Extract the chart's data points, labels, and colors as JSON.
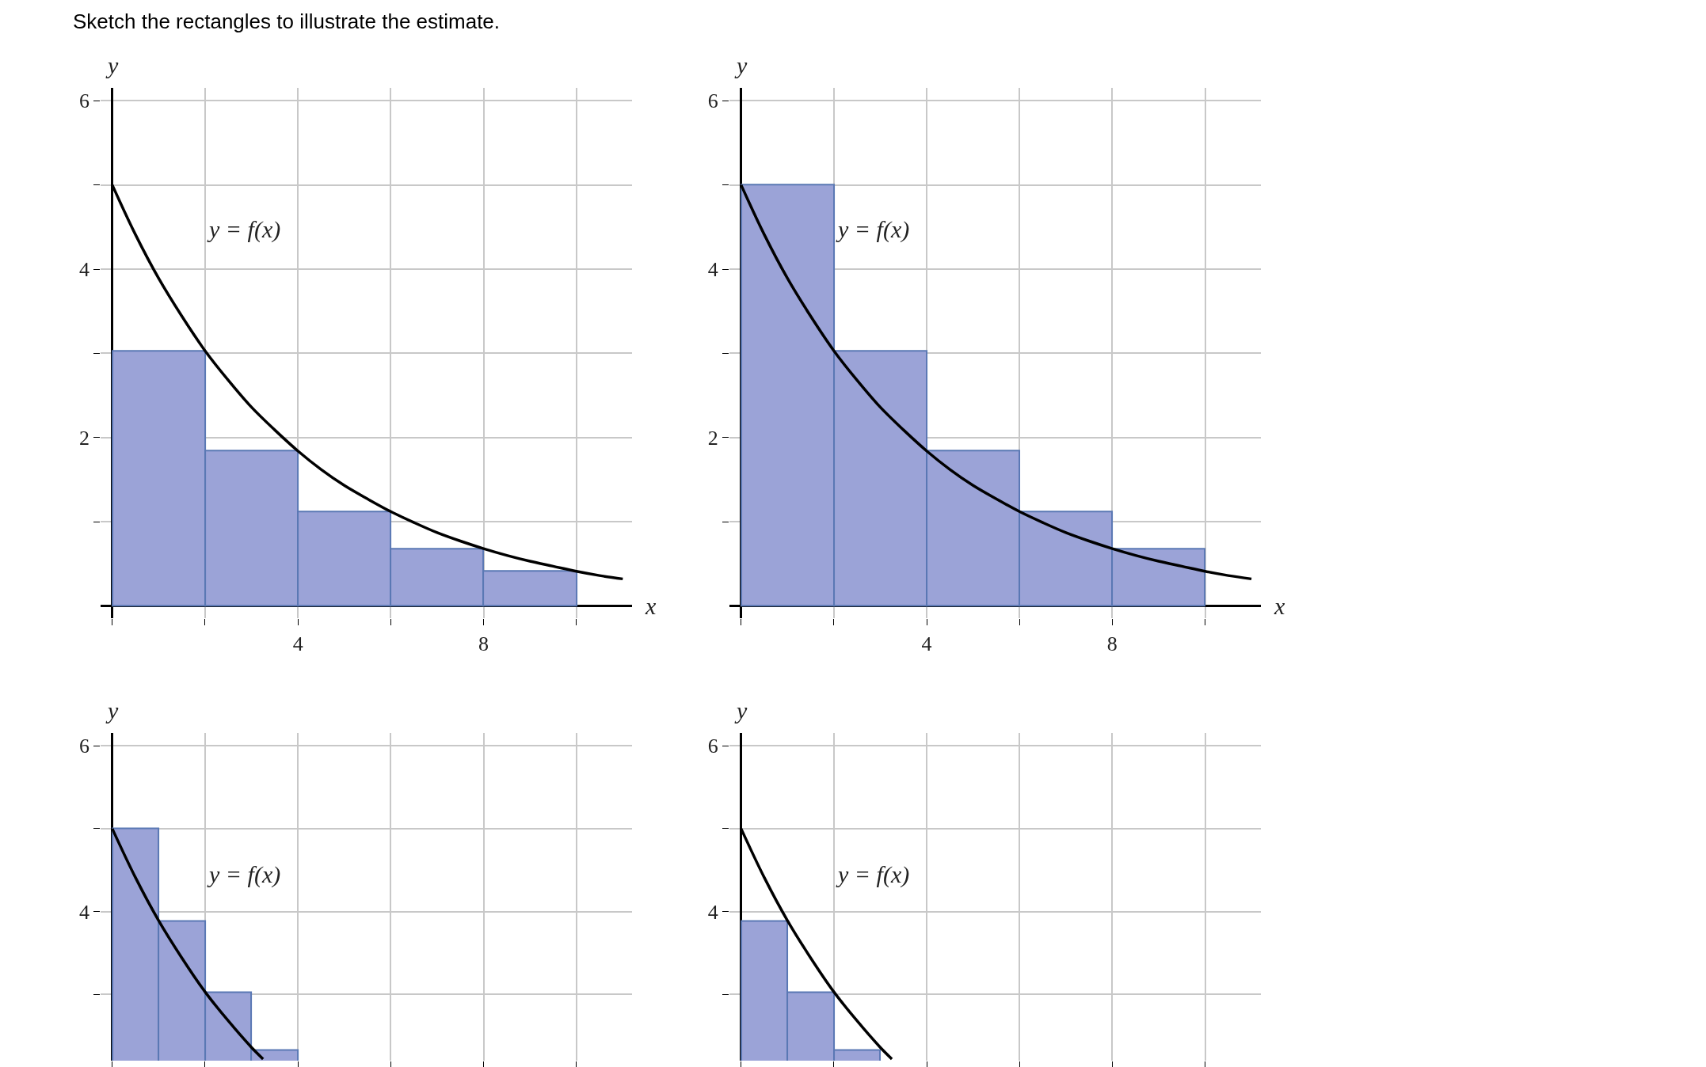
{
  "chart_data": [
    {
      "type": "histogram",
      "title": "Sketch the rectangles to illustrate the estimate.",
      "xlabel": "x",
      "ylabel": "y",
      "annotations": [
        "y = f(x)"
      ],
      "series": [
        {
          "color": "#9ba3d7",
          "bins": [
            0,
            2,
            4,
            6,
            8,
            10
          ],
          "values": [
            3.03,
            1.84,
            1.12,
            0.68,
            0.41
          ]
        },
        {
          "type": "line",
          "color": "#000000",
          "x": [
            0,
            0.5,
            1,
            1.5,
            2,
            2.5,
            3,
            3.5,
            4,
            4.5,
            5,
            5.5,
            6,
            6.5,
            7,
            7.5,
            8,
            8.5,
            9,
            9.5,
            10,
            10.5,
            11
          ],
          "values": [
            5,
            4.41,
            3.89,
            3.44,
            3.03,
            2.68,
            2.36,
            2.09,
            1.84,
            1.62,
            1.43,
            1.27,
            1.12,
            0.99,
            0.87,
            0.77,
            0.68,
            0.6,
            0.53,
            0.47,
            0.41,
            0.36,
            0.32
          ]
        }
      ],
      "xlim": [
        -0.25,
        11.2
      ],
      "ylim": [
        -0.15,
        6.15
      ],
      "xticks": [
        {
          "value": 0,
          "label": null
        },
        {
          "value": 2,
          "label": null
        },
        4,
        {
          "value": 6,
          "label": null
        },
        8,
        {
          "value": 10,
          "label": null
        }
      ],
      "yticks": [
        {
          "value": 1,
          "label": null
        },
        2,
        {
          "value": 3,
          "label": null
        },
        4,
        {
          "value": 5,
          "label": null
        },
        6
      ],
      "grid": true
    },
    {
      "type": "histogram",
      "xlabel": "x",
      "ylabel": "y",
      "annotations": [
        "y = f(x)"
      ],
      "series": [
        {
          "color": "#9ba3d7",
          "bins": [
            0,
            2,
            4,
            6,
            8,
            10
          ],
          "values": [
            5,
            3.03,
            1.84,
            1.12,
            0.68
          ]
        },
        {
          "type": "line",
          "color": "#000000",
          "x": [
            0,
            0.5,
            1,
            1.5,
            2,
            2.5,
            3,
            3.5,
            4,
            4.5,
            5,
            5.5,
            6,
            6.5,
            7,
            7.5,
            8,
            8.5,
            9,
            9.5,
            10,
            10.5,
            11
          ],
          "values": [
            5,
            4.41,
            3.89,
            3.44,
            3.03,
            2.68,
            2.36,
            2.09,
            1.84,
            1.62,
            1.43,
            1.27,
            1.12,
            0.99,
            0.87,
            0.77,
            0.68,
            0.6,
            0.53,
            0.47,
            0.41,
            0.36,
            0.32
          ]
        }
      ],
      "xlim": [
        -0.25,
        11.2
      ],
      "ylim": [
        -0.15,
        6.15
      ],
      "xticks": [
        {
          "value": 0,
          "label": null
        },
        {
          "value": 2,
          "label": null
        },
        4,
        {
          "value": 6,
          "label": null
        },
        8,
        {
          "value": 10,
          "label": null
        }
      ],
      "yticks": [
        {
          "value": 1,
          "label": null
        },
        2,
        {
          "value": 3,
          "label": null
        },
        4,
        {
          "value": 5,
          "label": null
        },
        6
      ],
      "grid": true
    },
    {
      "type": "histogram",
      "ylabel": "y",
      "annotations": [
        "y = f(x)"
      ],
      "series": [
        {
          "color": "#9ba3d7",
          "bins": [
            0,
            1,
            2,
            3,
            4
          ],
          "values": [
            5,
            3.89,
            3.03,
            2.33
          ]
        },
        {
          "type": "line",
          "color": "#000000",
          "x": [
            0,
            0.5,
            1,
            1.5,
            2,
            2.5,
            3,
            3.25
          ],
          "values": [
            5,
            4.41,
            3.89,
            3.44,
            3.03,
            2.68,
            2.36,
            2.22
          ]
        }
      ],
      "xlim": [
        -0.25,
        11.2
      ],
      "ylim": [
        2.2,
        6.15
      ],
      "xticks": [
        {
          "value": 0,
          "label": null
        },
        {
          "value": 2,
          "label": null
        },
        {
          "value": 4,
          "label": null
        },
        {
          "value": 6,
          "label": null
        },
        {
          "value": 8,
          "label": null
        },
        {
          "value": 10,
          "label": null
        }
      ],
      "yticks": [
        {
          "value": 3,
          "label": null
        },
        4,
        {
          "value": 5,
          "label": null
        },
        6
      ],
      "grid": true,
      "tick_labels": "y"
    },
    {
      "type": "histogram",
      "ylabel": "y",
      "annotations": [
        "y = f(x)"
      ],
      "series": [
        {
          "color": "#9ba3d7",
          "bins": [
            0,
            1,
            2,
            3
          ],
          "values": [
            3.89,
            3.03,
            2.33
          ]
        },
        {
          "type": "line",
          "color": "#000000",
          "x": [
            0,
            0.5,
            1,
            1.5,
            2,
            2.5,
            3,
            3.25
          ],
          "values": [
            5,
            4.41,
            3.89,
            3.44,
            3.03,
            2.68,
            2.36,
            2.22
          ]
        }
      ],
      "xlim": [
        -0.25,
        11.2
      ],
      "ylim": [
        2.2,
        6.15
      ],
      "xticks": [
        {
          "value": 0,
          "label": null
        },
        {
          "value": 2,
          "label": null
        },
        {
          "value": 4,
          "label": null
        },
        {
          "value": 6,
          "label": null
        },
        {
          "value": 8,
          "label": null
        },
        {
          "value": 10,
          "label": null
        }
      ],
      "yticks": [
        {
          "value": 3,
          "label": null
        },
        4,
        {
          "value": 5,
          "label": null
        },
        6
      ],
      "grid": true,
      "tick_labels": "y"
    }
  ]
}
